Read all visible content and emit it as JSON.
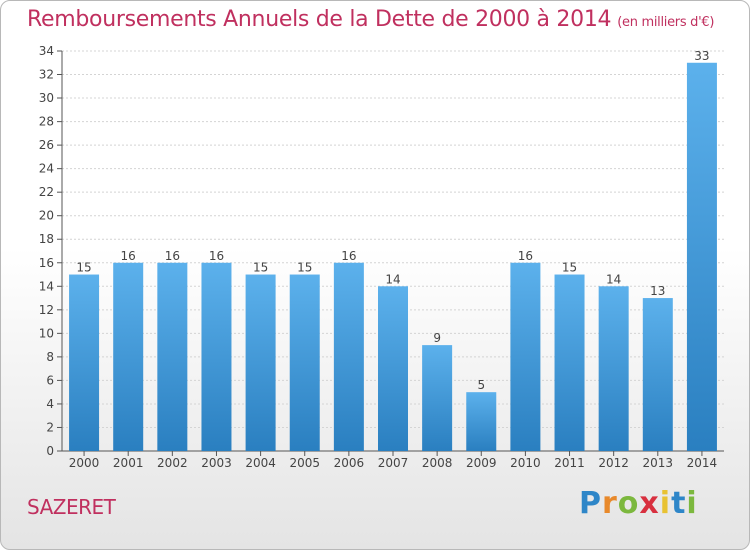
{
  "title": "Remboursements Annuels de la Dette de 2000 à 2014",
  "subtitle": "(en milliers d'€)",
  "commune": "SAZERET",
  "brand": {
    "letters": [
      "P",
      "r",
      "o",
      "x",
      "i",
      "t",
      "i"
    ],
    "colors": [
      "#2e86c8",
      "#e8892b",
      "#7cb83e",
      "#d8303f",
      "#e8c232",
      "#2e86c8",
      "#7cb83e"
    ]
  },
  "colors": {
    "bar": "#3d9ad8",
    "title": "#c0305f"
  },
  "chart_data": {
    "type": "bar",
    "categories": [
      "2000",
      "2001",
      "2002",
      "2003",
      "2004",
      "2005",
      "2006",
      "2007",
      "2008",
      "2009",
      "2010",
      "2011",
      "2012",
      "2013",
      "2014"
    ],
    "values": [
      15,
      16,
      16,
      16,
      15,
      15,
      16,
      14,
      9,
      5,
      16,
      15,
      14,
      13,
      33
    ],
    "ylim": [
      0,
      34
    ],
    "yticks": [
      0,
      2,
      4,
      6,
      8,
      10,
      12,
      14,
      16,
      18,
      20,
      22,
      24,
      26,
      28,
      30,
      32,
      34
    ],
    "grid": true,
    "data_labels": true
  }
}
